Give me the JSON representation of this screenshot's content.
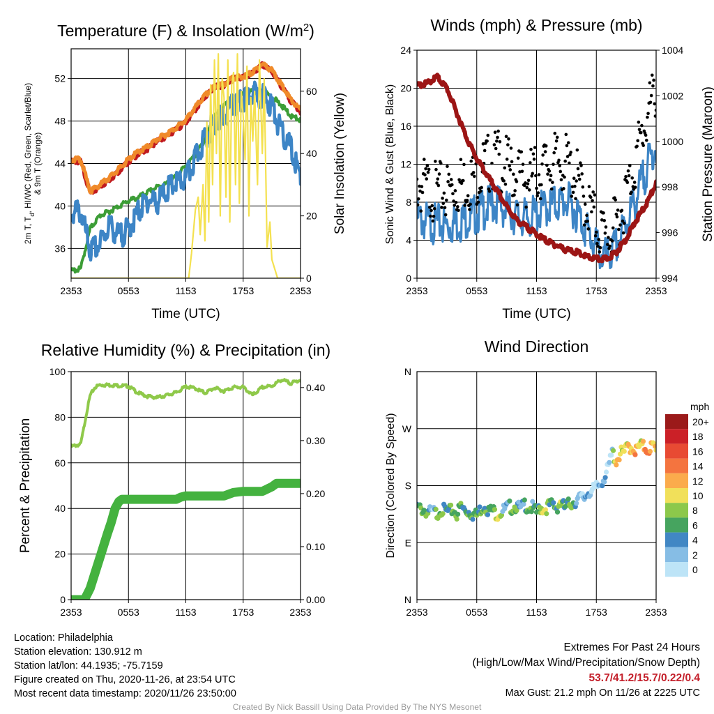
{
  "chart_data": [
    {
      "type": "line",
      "title": "Temperature (F) & Insolation (W/m²)",
      "xlabel": "Time (UTC)",
      "ylabel_left": "2m T, Td, HI/WC (Red, Green, Scarlet/Blue) & 9m T (Orange)",
      "ylabel_right": "Solar Insolation (Yellow)",
      "x_ticks": [
        "2353",
        "0553",
        "1153",
        "1753",
        "2353"
      ],
      "y_ticks_left": [
        36,
        40,
        44,
        48,
        52
      ],
      "y_ticks_right": [
        0,
        20,
        40,
        60
      ],
      "ylim_left": [
        33.2,
        54.8
      ],
      "ylim_right": [
        0,
        73.6
      ],
      "x_range_hours": [
        0,
        24
      ],
      "grid": true,
      "series": [
        {
          "color": "#c01a1f",
          "axis": "left",
          "x": [
            0,
            1,
            2,
            3,
            4,
            5,
            6,
            7,
            8,
            9,
            10,
            11,
            12,
            13,
            14,
            15,
            16,
            17,
            18,
            19,
            20,
            21,
            22,
            23,
            24
          ],
          "values": [
            44.3,
            44.3,
            41.3,
            41.9,
            42.6,
            43.4,
            44.3,
            45.0,
            45.5,
            46.2,
            46.7,
            47.3,
            48.0,
            49.2,
            50.4,
            51.3,
            51.5,
            52.1,
            52.2,
            52.6,
            53.4,
            52.8,
            51.4,
            50.0,
            49.0
          ]
        },
        {
          "color": "#f08a2a",
          "axis": "left",
          "x": [
            0,
            1,
            2,
            3,
            4,
            5,
            6,
            7,
            8,
            9,
            10,
            11,
            12,
            13,
            14,
            15,
            16,
            17,
            18,
            19,
            20,
            21,
            22,
            23,
            24
          ],
          "values": [
            44.5,
            44.5,
            41.5,
            42.1,
            42.8,
            43.6,
            44.5,
            45.2,
            45.7,
            46.4,
            46.9,
            47.5,
            48.2,
            49.4,
            50.5,
            51.4,
            51.6,
            52.2,
            52.3,
            52.7,
            53.5,
            52.9,
            51.5,
            50.1,
            49.1
          ]
        },
        {
          "color": "#3c9d36",
          "axis": "left",
          "x": [
            0,
            1,
            2,
            3,
            4,
            5,
            6,
            7,
            8,
            9,
            10,
            11,
            12,
            13,
            14,
            15,
            16,
            17,
            18,
            19,
            20,
            21,
            22,
            23,
            24
          ],
          "values": [
            34.0,
            34.2,
            38.0,
            39.2,
            39.6,
            40.1,
            40.6,
            40.9,
            41.4,
            41.9,
            42.2,
            42.9,
            43.9,
            44.9,
            46.4,
            48.5,
            49.5,
            50.2,
            50.6,
            50.9,
            50.9,
            50.4,
            49.6,
            48.6,
            48.2
          ]
        },
        {
          "color": "#3d85c6",
          "axis": "left",
          "x": [
            0,
            1,
            2,
            3,
            4,
            5,
            6,
            7,
            8,
            9,
            10,
            11,
            12,
            13,
            14,
            15,
            16,
            17,
            18,
            19,
            20,
            21,
            22,
            23,
            24
          ],
          "values": [
            39.8,
            40.1,
            36.3,
            37.0,
            38.8,
            37.7,
            38.4,
            40.0,
            41.2,
            41.0,
            42.1,
            42.7,
            43.1,
            45.0,
            47.0,
            48.5,
            49.0,
            50.2,
            50.4,
            51.2,
            51.0,
            50.0,
            47.5,
            46.0,
            43.2
          ]
        },
        {
          "color": "#f4e150",
          "axis": "right",
          "x": [
            0,
            12.3,
            12.6,
            13.0,
            13.3,
            13.5,
            13.8,
            14.0,
            14.2,
            14.4,
            14.6,
            14.8,
            15.0,
            15.2,
            15.4,
            15.6,
            15.8,
            16.0,
            16.2,
            16.4,
            16.6,
            16.8,
            17.0,
            17.2,
            17.4,
            17.6,
            17.8,
            18.0,
            18.2,
            18.4,
            18.6,
            18.8,
            19.0,
            19.2,
            19.5,
            19.7,
            20.0,
            20.2,
            20.5,
            20.8,
            21.0,
            21.3,
            21.6,
            22.0,
            24
          ],
          "values": [
            0,
            0,
            8,
            22,
            26,
            14,
            30,
            12,
            50,
            18,
            62,
            30,
            70,
            40,
            72,
            20,
            64,
            58,
            26,
            70,
            18,
            62,
            66,
            30,
            72,
            24,
            60,
            52,
            38,
            68,
            20,
            58,
            44,
            60,
            30,
            70,
            40,
            64,
            10,
            18,
            6,
            3,
            0,
            0,
            0
          ]
        }
      ]
    },
    {
      "type": "line",
      "title": "Winds (mph) & Pressure (mb)",
      "xlabel": "Time (UTC)",
      "ylabel_left": "Sonic Wind & Gust (Blue, Black)",
      "ylabel_right": "Station Pressure (Maroon)",
      "x_ticks": [
        "2353",
        "0553",
        "1153",
        "1753",
        "2353"
      ],
      "y_ticks_left": [
        0,
        4,
        8,
        12,
        16,
        20,
        24
      ],
      "y_ticks_right": [
        994,
        996,
        998,
        1000,
        1002,
        1004
      ],
      "ylim_left": [
        0,
        24
      ],
      "ylim_right": [
        994,
        1004
      ],
      "x_range_hours": [
        0,
        24
      ],
      "grid": true,
      "series": [
        {
          "color": "#3d85c6",
          "axis": "left",
          "x": [
            0,
            1,
            2,
            3,
            4,
            5,
            6,
            7,
            8,
            9,
            10,
            11,
            12,
            13,
            14,
            15,
            16,
            17,
            18,
            19,
            20,
            21,
            22,
            23,
            24
          ],
          "values": [
            7.4,
            7.0,
            6.8,
            6.6,
            6.9,
            7.4,
            7.9,
            8.5,
            9.1,
            8.2,
            7.6,
            7.3,
            7.8,
            8.6,
            8.9,
            9.3,
            8.1,
            6.2,
            4.3,
            3.1,
            4.4,
            6.9,
            9.5,
            12.5,
            15.2
          ]
        },
        {
          "color": "#000000",
          "axis": "left",
          "style": "points",
          "x": [
            0,
            1,
            2,
            3,
            4,
            5,
            6,
            7,
            8,
            9,
            10,
            11,
            12,
            13,
            14,
            15,
            16,
            17,
            18,
            19,
            20,
            21,
            22,
            23,
            24
          ],
          "values": [
            10.3,
            9.8,
            9.5,
            9.6,
            10.1,
            10.6,
            11.1,
            12.4,
            13.0,
            12.1,
            11.3,
            10.8,
            11.4,
            12.2,
            12.6,
            12.4,
            11.0,
            8.3,
            6.1,
            4.6,
            6.0,
            9.2,
            13.1,
            17.0,
            20.2
          ]
        },
        {
          "color": "#9c1515",
          "axis": "right",
          "x": [
            0,
            1,
            2,
            3,
            4,
            5,
            6,
            7,
            8,
            9,
            10,
            11,
            12,
            13,
            14,
            15,
            16,
            17,
            18,
            19,
            20,
            21,
            22,
            23,
            24
          ],
          "values": [
            1002.5,
            1002.6,
            1002.9,
            1002.4,
            1001.3,
            1000.2,
            999.3,
            998.6,
            997.9,
            997.2,
            996.6,
            996.3,
            996.0,
            995.7,
            995.5,
            995.3,
            995.2,
            995.0,
            994.9,
            994.9,
            995.2,
            995.8,
            996.6,
            997.3,
            998.2
          ]
        }
      ]
    },
    {
      "type": "line",
      "title": "Relative Humidity (%) & Precipitation (in)",
      "xlabel": "",
      "ylabel_left": "Percent & Precipitation",
      "ylabel_right": "",
      "x_ticks": [
        "2353",
        "0553",
        "1153",
        "1753",
        "2353"
      ],
      "y_ticks_left": [
        0,
        20,
        40,
        60,
        80,
        100
      ],
      "y_ticks_right": [
        "0.00",
        "0.10",
        "0.20",
        "0.30",
        "0.40"
      ],
      "ylim_left": [
        0,
        100
      ],
      "ylim_right": [
        0,
        0.43
      ],
      "x_range_hours": [
        0,
        24
      ],
      "grid": true,
      "series": [
        {
          "color": "#8fc94a",
          "axis": "left",
          "x": [
            0,
            1.0,
            1.3,
            1.6,
            2.0,
            2.5,
            3.0,
            4,
            5,
            6,
            7,
            8,
            9,
            10,
            11,
            12,
            13,
            14,
            15,
            16,
            17,
            18,
            19,
            20,
            21,
            22,
            23,
            24
          ],
          "values": [
            67.5,
            68.5,
            75,
            82,
            90,
            93.5,
            94.5,
            94.5,
            94.2,
            94.0,
            91.0,
            89.5,
            89.0,
            90.0,
            91.2,
            93.8,
            93.0,
            91.0,
            93.2,
            91.8,
            93.5,
            93.5,
            90.0,
            93.5,
            94.0,
            96.8,
            95.2,
            96.8
          ]
        },
        {
          "color": "#44b23f",
          "axis": "left",
          "x": [
            0,
            1.4,
            2.0,
            2.6,
            3.2,
            3.8,
            4.2,
            4.6,
            5.0,
            5.3,
            6,
            7,
            8,
            9,
            10,
            11,
            11.5,
            12,
            13,
            14,
            15,
            16,
            17,
            18,
            19,
            20,
            21,
            21.5,
            22,
            23,
            24
          ],
          "values": [
            0,
            0,
            5,
            13,
            21,
            29,
            34,
            40,
            43,
            44,
            44,
            44,
            44,
            44,
            44,
            44,
            45,
            45.5,
            45.5,
            45.5,
            45.5,
            45.5,
            47,
            47.5,
            47.5,
            47.5,
            49.5,
            51,
            51,
            51,
            51
          ]
        }
      ]
    },
    {
      "type": "scatter",
      "title": "Wind Direction",
      "xlabel": "",
      "ylabel": "Direction (Colored By Speed)",
      "x_ticks": [
        "2353",
        "0553",
        "1153",
        "1753",
        "2353"
      ],
      "y_ticks": [
        "N",
        "E",
        "S",
        "W",
        "N"
      ],
      "ylim_degrees": [
        0,
        360
      ],
      "x_range_hours": [
        0,
        24
      ],
      "grid": true,
      "legend": {
        "title": "mph",
        "position": "right",
        "labels": [
          "20+",
          "18",
          "16",
          "14",
          "12",
          "10",
          "8",
          "6",
          "4",
          "2",
          "0"
        ],
        "colors": [
          "#9b1a1a",
          "#cb2027",
          "#e84a33",
          "#f4743f",
          "#fbab4c",
          "#f1e05a",
          "#8cc84b",
          "#46a45f",
          "#4187c4",
          "#86bde5",
          "#bde4f7"
        ]
      },
      "points": {
        "x": [
          0.0,
          0.4,
          0.8,
          1.2,
          1.6,
          2.0,
          2.4,
          2.8,
          3.2,
          3.6,
          4.0,
          4.4,
          4.8,
          5.2,
          5.6,
          6.0,
          6.4,
          6.8,
          7.2,
          7.6,
          8.0,
          8.4,
          8.8,
          9.2,
          9.6,
          10.0,
          10.4,
          10.8,
          11.2,
          11.6,
          12.0,
          12.4,
          12.8,
          13.2,
          13.6,
          14.0,
          14.4,
          14.8,
          15.2,
          15.6,
          16.0,
          16.4,
          16.8,
          17.2,
          17.6,
          18.0,
          18.4,
          18.8,
          19.2,
          19.6,
          20.0,
          20.4,
          20.8,
          21.2,
          21.6,
          22.0,
          22.4,
          22.8,
          23.2,
          23.6,
          24.0
        ],
        "deg": [
          150,
          148,
          146,
          142,
          144,
          140,
          148,
          145,
          143,
          147,
          140,
          152,
          146,
          144,
          140,
          138,
          148,
          154,
          145,
          146,
          140,
          143,
          147,
          152,
          150,
          154,
          146,
          156,
          150,
          150,
          142,
          150,
          148,
          153,
          155,
          150,
          160,
          150,
          155,
          158,
          162,
          165,
          166,
          176,
          176,
          182,
          188,
          199,
          212,
          238,
          224,
          236,
          237,
          248,
          244,
          240,
          248,
          246,
          242,
          248,
          240
        ],
        "speed": [
          7,
          8,
          6,
          7,
          5,
          8,
          7,
          6,
          8,
          7,
          9,
          9,
          7,
          6,
          8,
          10,
          7,
          6,
          9,
          10,
          10,
          8,
          5,
          6,
          7,
          8,
          6,
          5,
          7,
          6,
          9,
          8,
          10,
          9,
          7,
          6,
          9,
          8,
          9,
          7,
          5,
          4,
          3,
          3,
          2,
          4,
          2,
          3,
          3,
          4,
          12,
          11,
          13,
          12,
          11,
          14,
          13,
          12,
          15,
          14,
          13
        ]
      }
    }
  ],
  "info": {
    "location": "Location: Philadelphia",
    "elevation": "Station elevation: 130.912 m",
    "latlon": "Station lat/lon: 44.1935; -75.7159",
    "created": "Figure created on Thu, 2020-11-26, at 23:54 UTC",
    "recent": "Most recent data timestamp: 2020/11/26 23:50:00"
  },
  "extremes": {
    "title": "Extremes For Past 24 Hours",
    "subtitle": "(High/Low/Max Wind/Precipitation/Snow Depth)",
    "values": "53.7/41.2/15.7/0.22/0.4",
    "gust": "Max Gust: 21.2 mph On 11/26 at 2225 UTC"
  },
  "credit": "Created By Nick Bassill Using Data Provided By The NYS Mesonet"
}
